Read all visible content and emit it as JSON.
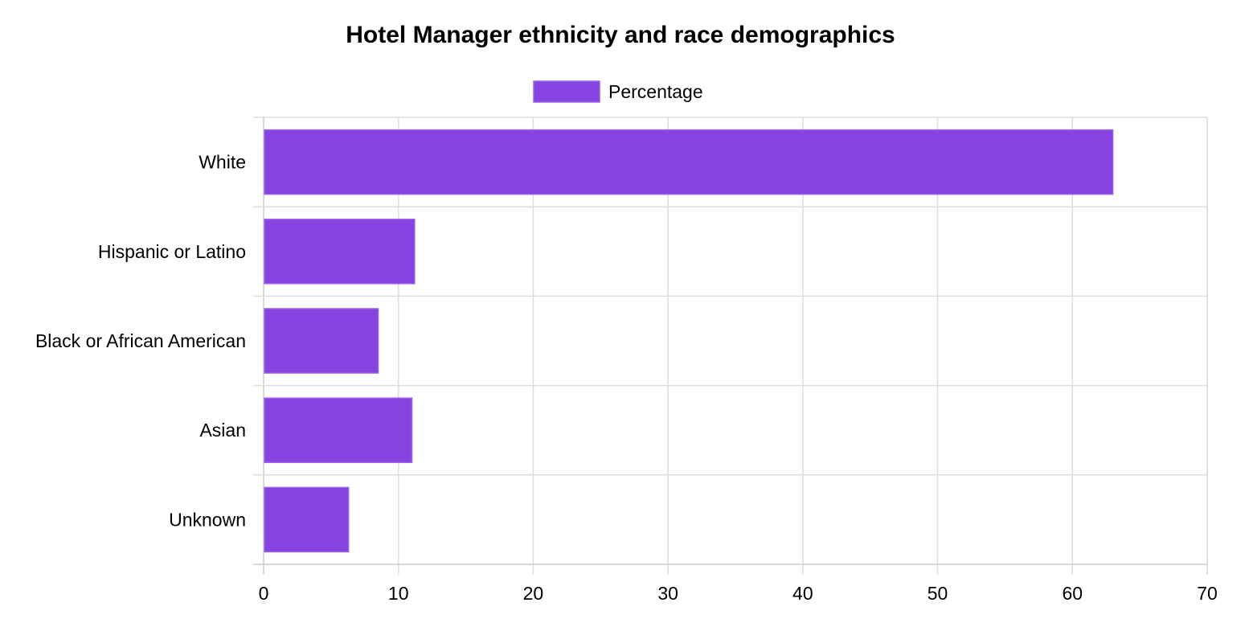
{
  "chart_data": {
    "type": "bar",
    "orientation": "horizontal",
    "title": "Hotel Manager ethnicity and race demographics",
    "categories": [
      "White",
      "Hispanic or Latino",
      "Black or African American",
      "Asian",
      "Unknown"
    ],
    "series": [
      {
        "name": "Percentage",
        "values": [
          63.0,
          11.2,
          8.5,
          11.0,
          6.3
        ],
        "color": "#8643e0"
      }
    ],
    "xlim": [
      0,
      70
    ],
    "xticks": [
      "0",
      "10",
      "20",
      "30",
      "40",
      "50",
      "60",
      "70"
    ],
    "grid": true,
    "legend_position": "top-center"
  }
}
